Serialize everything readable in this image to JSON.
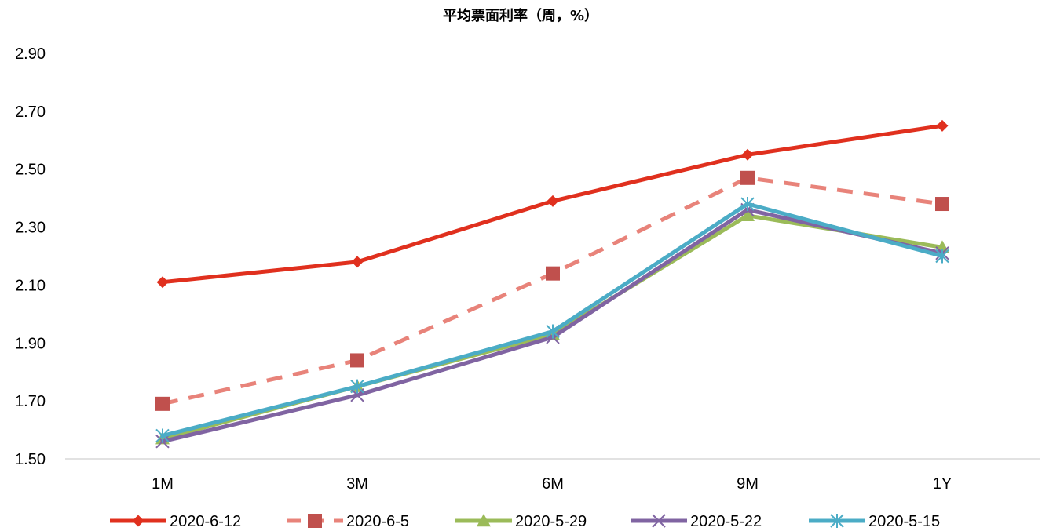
{
  "chart_data": {
    "type": "line",
    "title": "平均票面利率（周，%）",
    "xlabel": "",
    "ylabel": "",
    "categories": [
      "1M",
      "3M",
      "6M",
      "9M",
      "1Y"
    ],
    "ylim": [
      1.5,
      2.9
    ],
    "yticks": [
      "2.90",
      "2.70",
      "2.50",
      "2.30",
      "2.10",
      "1.90",
      "1.70",
      "1.50"
    ],
    "grid": false,
    "legend_position": "bottom",
    "series": [
      {
        "name": "2020-6-12",
        "values": [
          2.11,
          2.18,
          2.39,
          2.55,
          2.65
        ],
        "color": "#E0301E",
        "marker": "diamond",
        "dash": false
      },
      {
        "name": "2020-6-5",
        "values": [
          1.69,
          1.84,
          2.14,
          2.47,
          2.38
        ],
        "color": "#E8837A",
        "marker": "square",
        "dash": true
      },
      {
        "name": "2020-5-29",
        "values": [
          1.57,
          1.75,
          1.93,
          2.34,
          2.23
        ],
        "color": "#9BBB59",
        "marker": "triangle",
        "dash": false
      },
      {
        "name": "2020-5-22",
        "values": [
          1.56,
          1.72,
          1.92,
          2.36,
          2.21
        ],
        "color": "#8064A2",
        "marker": "x",
        "dash": false
      },
      {
        "name": "2020-5-15",
        "values": [
          1.58,
          1.75,
          1.94,
          2.38,
          2.2
        ],
        "color": "#4BACC6",
        "marker": "asterisk",
        "dash": false
      }
    ]
  }
}
